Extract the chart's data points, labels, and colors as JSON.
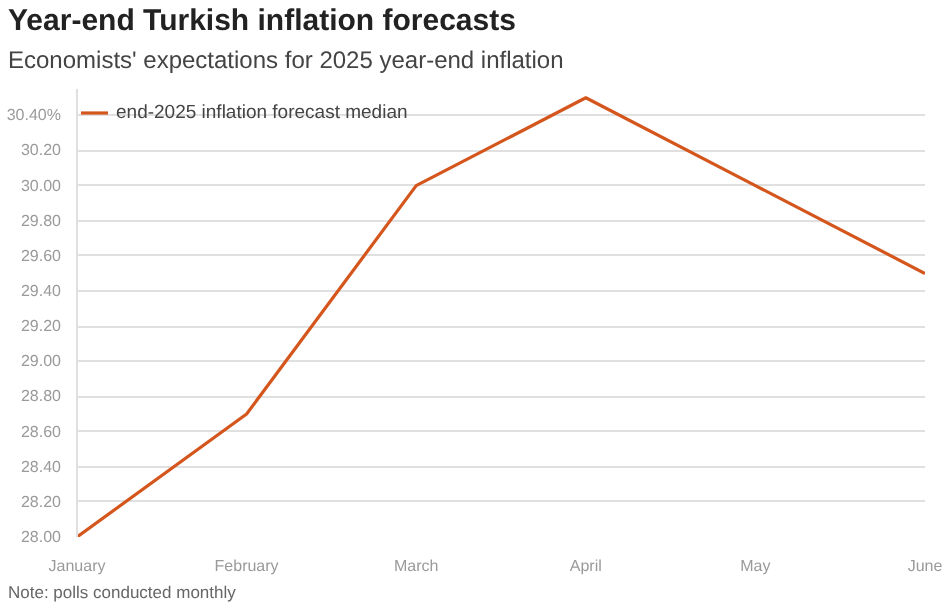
{
  "chart_data": {
    "type": "line",
    "title": "Year-end Turkish inflation forecasts",
    "subtitle": "Economists' expectations for 2025 year-end inflation",
    "categories": [
      "January",
      "February",
      "March",
      "April",
      "May",
      "June"
    ],
    "series": [
      {
        "name": "end-2025 inflation forecast median",
        "color": "#d4561c",
        "values": [
          28.0,
          28.7,
          30.0,
          30.5,
          30.0,
          29.5
        ]
      }
    ],
    "ylim": [
      28.0,
      30.55
    ],
    "yticks": [
      {
        "value": 28.0,
        "label": "28.00"
      },
      {
        "value": 28.2,
        "label": "28.20"
      },
      {
        "value": 28.4,
        "label": "28.40"
      },
      {
        "value": 28.6,
        "label": "28.60"
      },
      {
        "value": 28.8,
        "label": "28.80"
      },
      {
        "value": 29.0,
        "label": "29.00"
      },
      {
        "value": 29.2,
        "label": "29.20"
      },
      {
        "value": 29.4,
        "label": "29.40"
      },
      {
        "value": 29.6,
        "label": "29.60"
      },
      {
        "value": 29.8,
        "label": "29.80"
      },
      {
        "value": 30.0,
        "label": "30.00"
      },
      {
        "value": 30.2,
        "label": "30.20"
      },
      {
        "value": 30.4,
        "label": "30.40%"
      }
    ],
    "grid": "y",
    "legend": "top left",
    "marker": "none",
    "line_style": "solid",
    "annotations": [
      "Note: polls conducted monthly"
    ]
  }
}
